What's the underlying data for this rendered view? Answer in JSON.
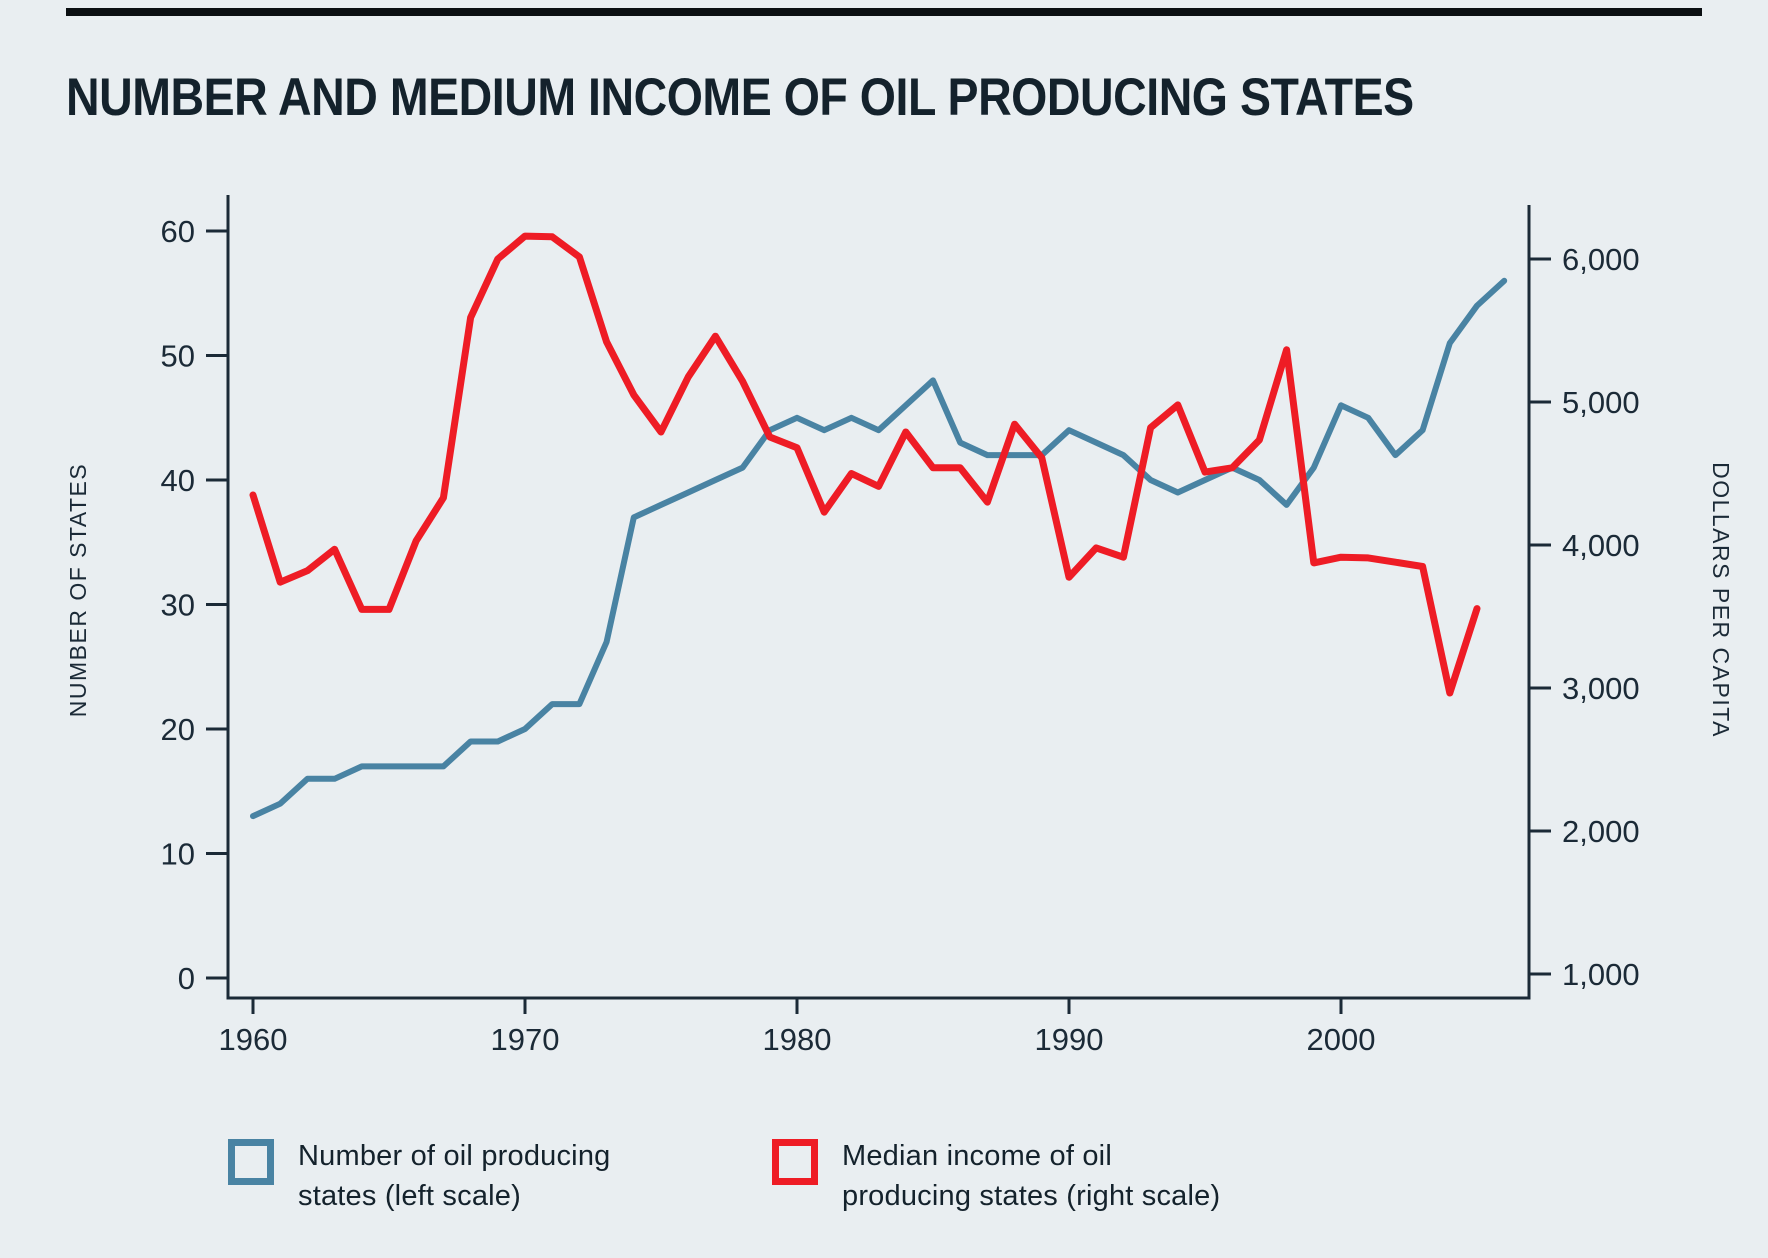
{
  "page": {
    "title": "NUMBER AND MEDIUM INCOME OF OIL PRODUCING STATES",
    "background_color": "#e9eef1",
    "text_color": "#14222c",
    "rule_color": "#0b0f12"
  },
  "chart_data": {
    "type": "line",
    "title": "NUMBER AND MEDIUM INCOME OF OIL PRODUCING STATES",
    "grid": false,
    "legend_position": "bottom",
    "axis_color": "#1b2a37",
    "x": [
      1960,
      1961,
      1962,
      1963,
      1964,
      1965,
      1966,
      1967,
      1968,
      1969,
      1970,
      1971,
      1972,
      1973,
      1974,
      1975,
      1976,
      1977,
      1978,
      1979,
      1980,
      1981,
      1982,
      1983,
      1984,
      1985,
      1986,
      1987,
      1988,
      1989,
      1990,
      1991,
      1992,
      1993,
      1994,
      1995,
      1996,
      1997,
      1998,
      1999,
      2000,
      2001,
      2002,
      2003,
      2004,
      2005,
      2006
    ],
    "x_ticks": [
      1960,
      1970,
      1980,
      1990,
      2000
    ],
    "left_axis": {
      "label": "NUMBER OF STATES",
      "ticks": [
        0,
        10,
        20,
        30,
        40,
        50,
        60
      ],
      "tick_labels": [
        "0",
        "10",
        "20",
        "30",
        "40",
        "50",
        "60"
      ],
      "range": [
        0,
        60
      ]
    },
    "right_axis": {
      "label": "DOLLARS PER CAPITA",
      "ticks": [
        1000,
        2000,
        3000,
        4000,
        5000,
        6000
      ],
      "tick_labels": [
        "1,000",
        "2,000",
        "3,000",
        "4,000",
        "5,000",
        "6,000"
      ],
      "range": [
        1000,
        6380
      ]
    },
    "series": [
      {
        "name": "Number of oil producing states (left scale)",
        "axis": "left",
        "color": "#4983a3",
        "stroke_width": 6,
        "values": [
          13,
          14,
          16,
          16,
          17,
          17,
          17,
          17,
          19,
          19,
          20,
          22,
          22,
          27,
          37,
          38,
          39,
          40,
          41,
          44,
          45,
          44,
          45,
          44,
          46,
          48,
          43,
          42,
          42,
          42,
          44,
          43,
          42,
          40,
          39,
          40,
          41,
          40,
          38,
          41,
          46,
          45,
          42,
          44,
          51,
          54,
          56
        ]
      },
      {
        "name": "Median income of oil producing states (right scale)",
        "axis": "right",
        "color": "#ee1c25",
        "stroke_width": 7,
        "values": [
          4350,
          3740,
          3820,
          3970,
          3550,
          3550,
          4030,
          4330,
          5590,
          6000,
          6160,
          6155,
          6015,
          5420,
          5050,
          4790,
          5175,
          5460,
          5145,
          4755,
          4680,
          4230,
          4500,
          4410,
          4790,
          4540,
          4540,
          4300,
          4845,
          4610,
          3775,
          3980,
          3915,
          4820,
          4980,
          4510,
          4540,
          4735,
          5365,
          3875,
          3915,
          3910,
          3880,
          3850,
          2965,
          3555,
          null
        ]
      }
    ]
  },
  "legend": {
    "items": [
      {
        "label_line1": "Number of oil producing",
        "label_line2": "states (left scale)",
        "color": "#4983a3"
      },
      {
        "label_line1": "Median income of oil",
        "label_line2": "producing states (right scale)",
        "color": "#ee1c25"
      }
    ]
  }
}
